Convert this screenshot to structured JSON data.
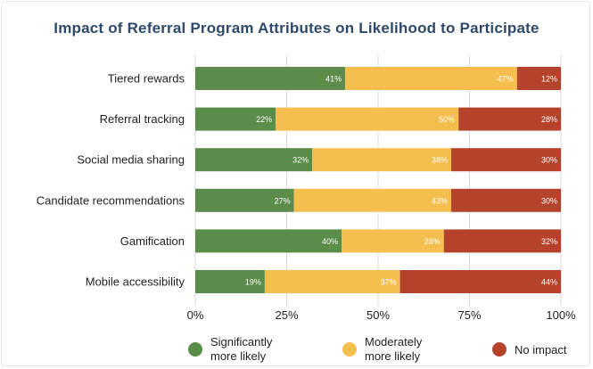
{
  "chart_data": {
    "type": "bar",
    "orientation": "horizontal",
    "stacked": true,
    "title": "Impact of Referral Program Attributes on Likelihood to Participate",
    "categories": [
      "Tiered rewards",
      "Referral tracking",
      "Social media sharing",
      "Candidate recommendations",
      "Gamification",
      "Mobile accessibility"
    ],
    "series": [
      {
        "name": "Significantly more likely",
        "legend_lines": [
          "Significantly",
          "more likely"
        ],
        "color": "#5b8c4a",
        "values": [
          41,
          22,
          32,
          27,
          40,
          19
        ]
      },
      {
        "name": "Moderately more likely",
        "legend_lines": [
          "Moderately",
          "more likely"
        ],
        "color": "#f5bf4f",
        "values": [
          47,
          50,
          38,
          43,
          28,
          37
        ]
      },
      {
        "name": "No impact",
        "legend_lines": [
          "No impact"
        ],
        "color": "#b5432b",
        "values": [
          12,
          28,
          30,
          30,
          32,
          44
        ]
      }
    ],
    "xlim": [
      0,
      100
    ],
    "x_ticks": [
      0,
      25,
      50,
      75,
      100
    ],
    "x_tick_labels": [
      "0%",
      "25%",
      "50%",
      "75%",
      "100%"
    ],
    "value_suffix": "%",
    "grid": "vertical",
    "gridline_color": "#d9d9d9",
    "legend_position": "bottom"
  }
}
